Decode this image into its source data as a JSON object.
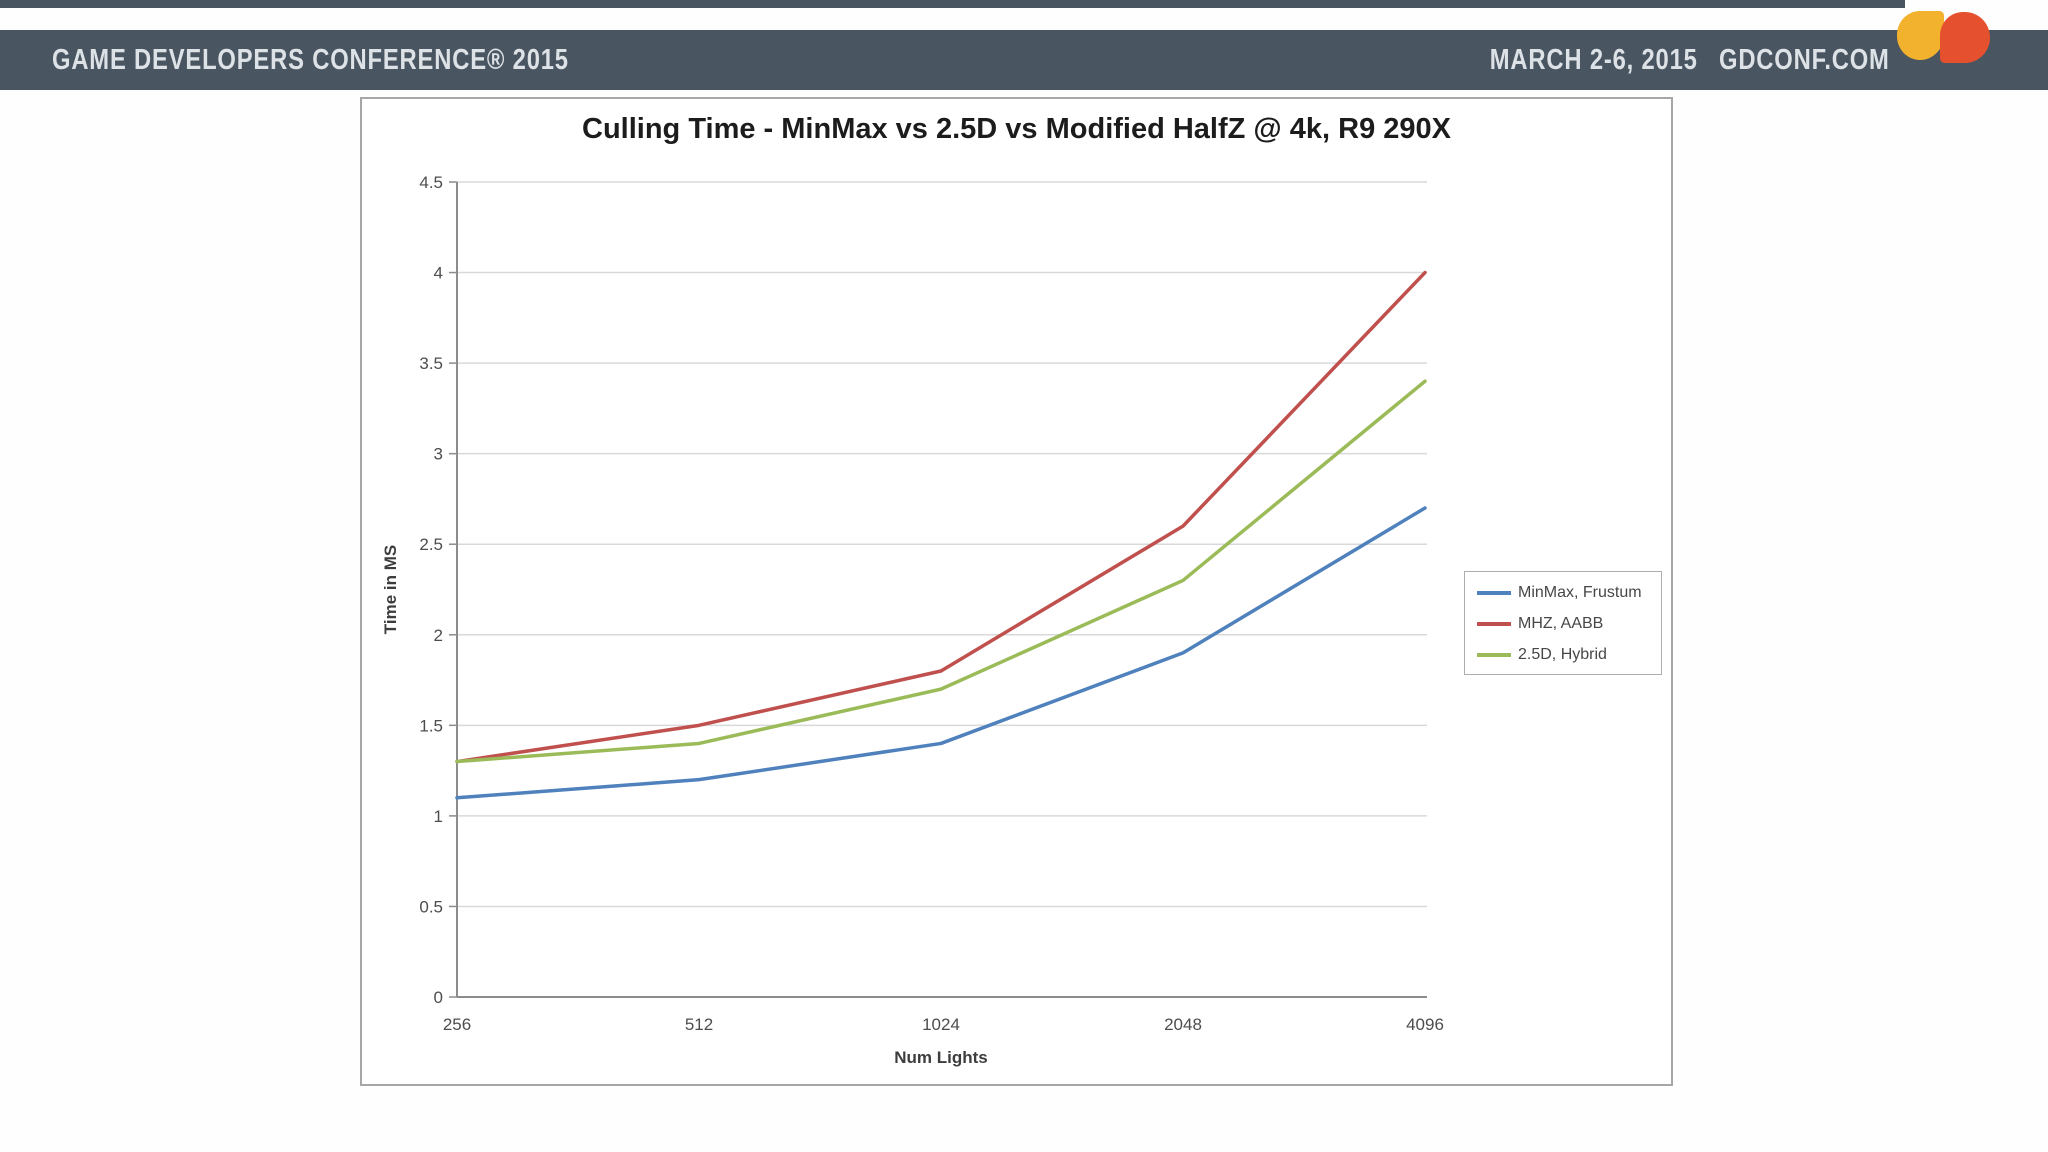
{
  "header": {
    "left_text": "GAME DEVELOPERS CONFERENCE® 2015",
    "dates": "MARCH 2-6, 2015",
    "website": "GDCONF.COM",
    "bar_color": "#4a5562",
    "text_color": "#dde2e7"
  },
  "logo": {
    "left_petal_color": "#f2b22d",
    "right_petal_color": "#e5512e"
  },
  "chart_data": {
    "type": "line",
    "title": "Culling Time - MinMax vs 2.5D vs Modified HalfZ @ 4k, R9 290X",
    "xlabel": "Num Lights",
    "ylabel": "Time in MS",
    "categories": [
      "256",
      "512",
      "1024",
      "2048",
      "4096"
    ],
    "yticks": [
      "0",
      "0.5",
      "1",
      "1.5",
      "2",
      "2.5",
      "3",
      "3.5",
      "4",
      "4.5"
    ],
    "ylim": [
      0,
      4.5
    ],
    "ytick_step": 0.5,
    "grid": true,
    "legend_position": "right",
    "axis_color": "#8c8c8c",
    "gridline_color": "#d9d9d9",
    "tick_label_color": "#4d4d4d",
    "series": [
      {
        "name": "MinMax, Frustum",
        "color": "#4f81bd",
        "values": [
          1.1,
          1.2,
          1.4,
          1.9,
          2.7
        ]
      },
      {
        "name": "MHZ, AABB",
        "color": "#c0504d",
        "values": [
          1.3,
          1.5,
          1.8,
          2.6,
          4.0
        ]
      },
      {
        "name": "2.5D, Hybrid",
        "color": "#9bbb59",
        "values": [
          1.3,
          1.4,
          1.7,
          2.3,
          3.4
        ]
      }
    ]
  }
}
